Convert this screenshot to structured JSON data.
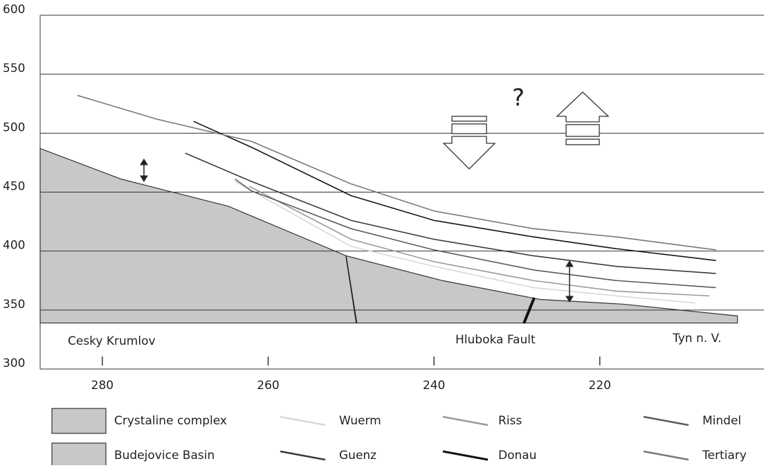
{
  "chart_data": {
    "type": "line",
    "xlim": [
      287.5,
      200.2
    ],
    "ylim": [
      300,
      600
    ],
    "xticks": [
      280,
      260,
      240,
      220
    ],
    "yticks": [
      300,
      350,
      400,
      450,
      500,
      550,
      600
    ],
    "grid": true,
    "areas": [
      {
        "name": "Crystaline complex",
        "color": "#c8c8c8",
        "x": [
          287.5,
          277.7,
          264.8,
          250.6,
          249.3,
          287.5
        ],
        "y": [
          487,
          461,
          438,
          396,
          339,
          339
        ]
      },
      {
        "name": "Budejovice Basin",
        "color": "#c8c8c8",
        "x": [
          250.6,
          239,
          227.2,
          217.2,
          203.4,
          203.4,
          249.3
        ],
        "y": [
          396,
          375,
          359,
          355,
          345,
          339,
          339
        ]
      }
    ],
    "series": [
      {
        "name": "Wuerm",
        "color": "#d8d8d8",
        "x": [
          264,
          250,
          240,
          228,
          218,
          208.5
        ],
        "values": [
          459,
          404,
          387,
          369,
          362,
          356
        ]
      },
      {
        "name": "Riss",
        "color": "#9a9a9a",
        "x": [
          262.3,
          250,
          240,
          228,
          218,
          206.8
        ],
        "values": [
          455,
          410,
          391,
          375,
          366,
          362
        ]
      },
      {
        "name": "Mindel",
        "color": "#5a5a5a",
        "x": [
          264,
          262,
          250,
          240,
          228,
          218,
          206
        ],
        "values": [
          461,
          451,
          419,
          401,
          384,
          375,
          369
        ]
      },
      {
        "name": "Guenz",
        "color": "#3a3a3a",
        "x": [
          270,
          262,
          250,
          240,
          228,
          218,
          206
        ],
        "values": [
          483,
          459,
          426,
          410,
          396,
          387,
          381
        ]
      },
      {
        "name": "Donau",
        "color": "#111111",
        "x": [
          269,
          262,
          250,
          240,
          228,
          218,
          206
        ],
        "values": [
          510,
          488,
          447,
          426,
          412,
          402,
          392
        ]
      },
      {
        "name": "Tertiary",
        "color": "#777777",
        "x": [
          283,
          273.5,
          262,
          250,
          240,
          228,
          218,
          206
        ],
        "values": [
          532,
          512,
          493,
          457,
          434,
          419,
          412,
          401
        ]
      }
    ],
    "annotations": [
      "Cesky Krumlov",
      "Hluboka Fault",
      "Tyn n. V.",
      "?"
    ]
  }
}
